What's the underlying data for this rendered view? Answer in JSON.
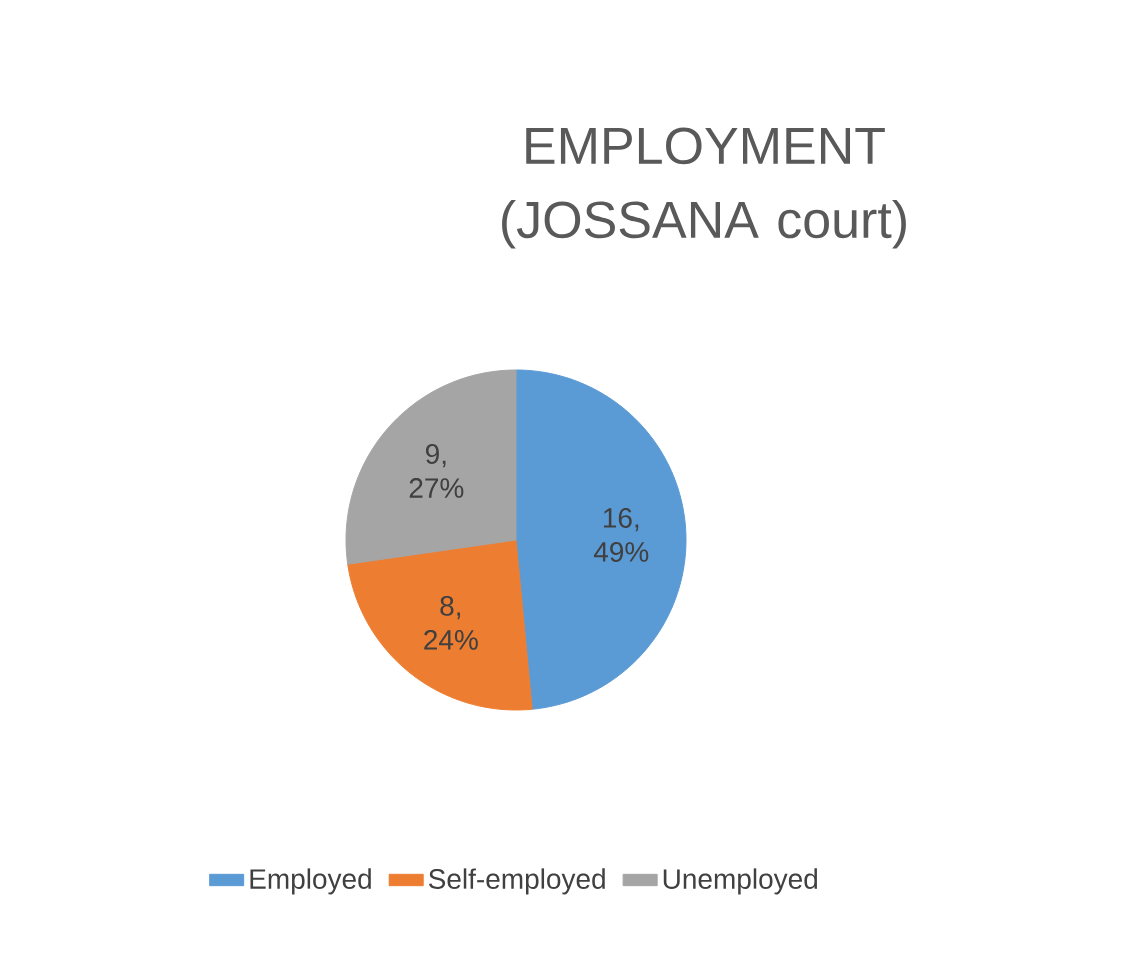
{
  "chart_data": {
    "type": "pie",
    "title": "EMPLOYMENT (JOSSANA court)",
    "categories": [
      "Employed",
      "Self-employed",
      "Unemployed"
    ],
    "values": [
      16,
      8,
      9
    ],
    "colors": [
      "#5b9bd5",
      "#ed7d31",
      "#a5a5a5"
    ],
    "value_labels": [
      "16, 49%",
      "8, 24%",
      "9, 27%"
    ],
    "legend": "bottom"
  }
}
